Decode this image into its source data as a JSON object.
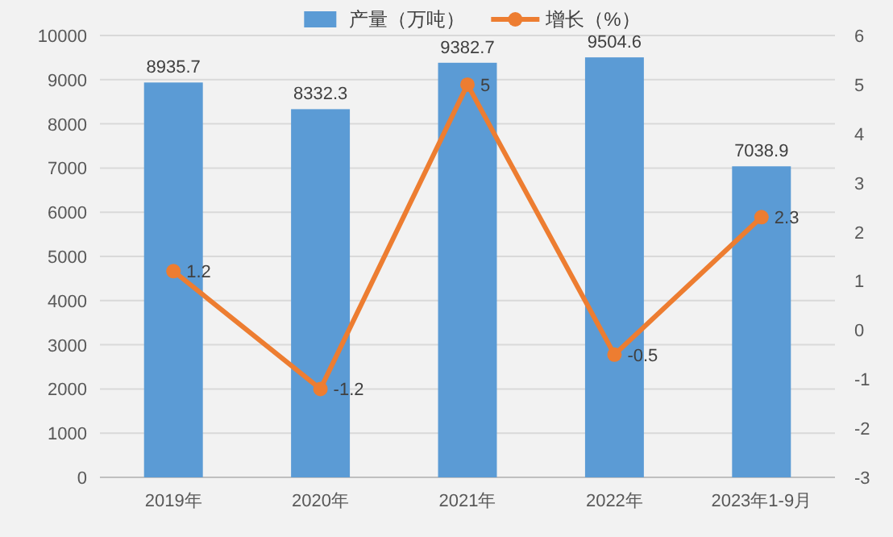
{
  "chart_data": {
    "type": "bar",
    "categories": [
      "2019年",
      "2020年",
      "2021年",
      "2022年",
      "2023年1-9月"
    ],
    "series": [
      {
        "name": "产量（万吨）",
        "color": "#5b9bd5",
        "values": [
          8935.7,
          8332.3,
          9382.7,
          9504.6,
          7038.9
        ]
      },
      {
        "name": "增长（%）",
        "type": "line",
        "axis": "y2",
        "color": "#ed7d31",
        "marker": "circle",
        "values": [
          1.2,
          -1.2,
          5,
          -0.5,
          2.3
        ]
      }
    ],
    "ylim": [
      0,
      10000
    ],
    "yticks": [
      0,
      1000,
      2000,
      3000,
      4000,
      5000,
      6000,
      7000,
      8000,
      9000,
      10000
    ],
    "y2lim": [
      -3,
      6
    ],
    "y2ticks": [
      -3,
      -2,
      -1,
      0,
      1,
      2,
      3,
      4,
      5,
      6
    ],
    "grid": "y",
    "legend": "top",
    "data_labels": true
  }
}
